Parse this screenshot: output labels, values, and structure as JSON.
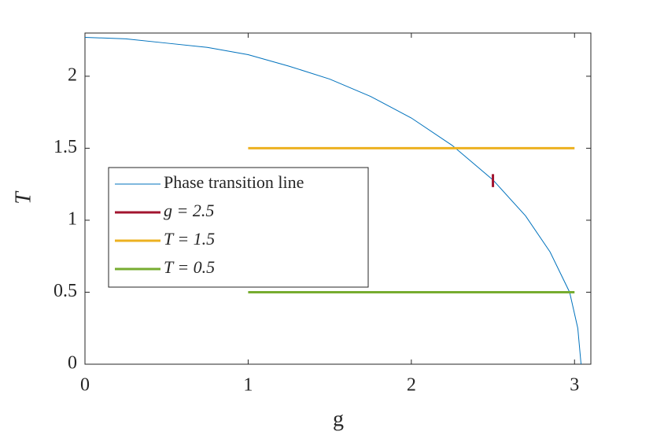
{
  "chart_data": {
    "type": "line",
    "x_label": "g",
    "y_label": "T",
    "xlim": [
      0,
      3.1
    ],
    "ylim": [
      0,
      2.3
    ],
    "xticks": [
      0,
      1,
      2,
      3
    ],
    "yticks": [
      0,
      0.5,
      1,
      1.5,
      2
    ],
    "legend": "west",
    "series": [
      {
        "name": "Phase transition line",
        "color": "#0072bd",
        "line_width": 1,
        "x": [
          0,
          0.25,
          0.5,
          0.75,
          1,
          1.25,
          1.5,
          1.75,
          2,
          2.25,
          2.5,
          2.7,
          2.85,
          2.97,
          3.02,
          3.04
        ],
        "values": [
          2.27,
          2.26,
          2.23,
          2.2,
          2.15,
          2.07,
          1.98,
          1.86,
          1.71,
          1.52,
          1.28,
          1.03,
          0.78,
          0.5,
          0.25,
          0
        ]
      },
      {
        "name": "g = 2.5",
        "color": "#a2142f",
        "line_width": 3,
        "x": [
          2.5,
          2.5
        ],
        "values": [
          1.23,
          1.32
        ]
      },
      {
        "name": "T = 1.5",
        "color": "#edb120",
        "line_width": 3,
        "x": [
          1,
          3
        ],
        "values": [
          1.5,
          1.5
        ]
      },
      {
        "name": "T = 0.5",
        "color": "#77ac30",
        "line_width": 3,
        "x": [
          1,
          3
        ],
        "values": [
          0.5,
          0.5
        ]
      }
    ]
  }
}
